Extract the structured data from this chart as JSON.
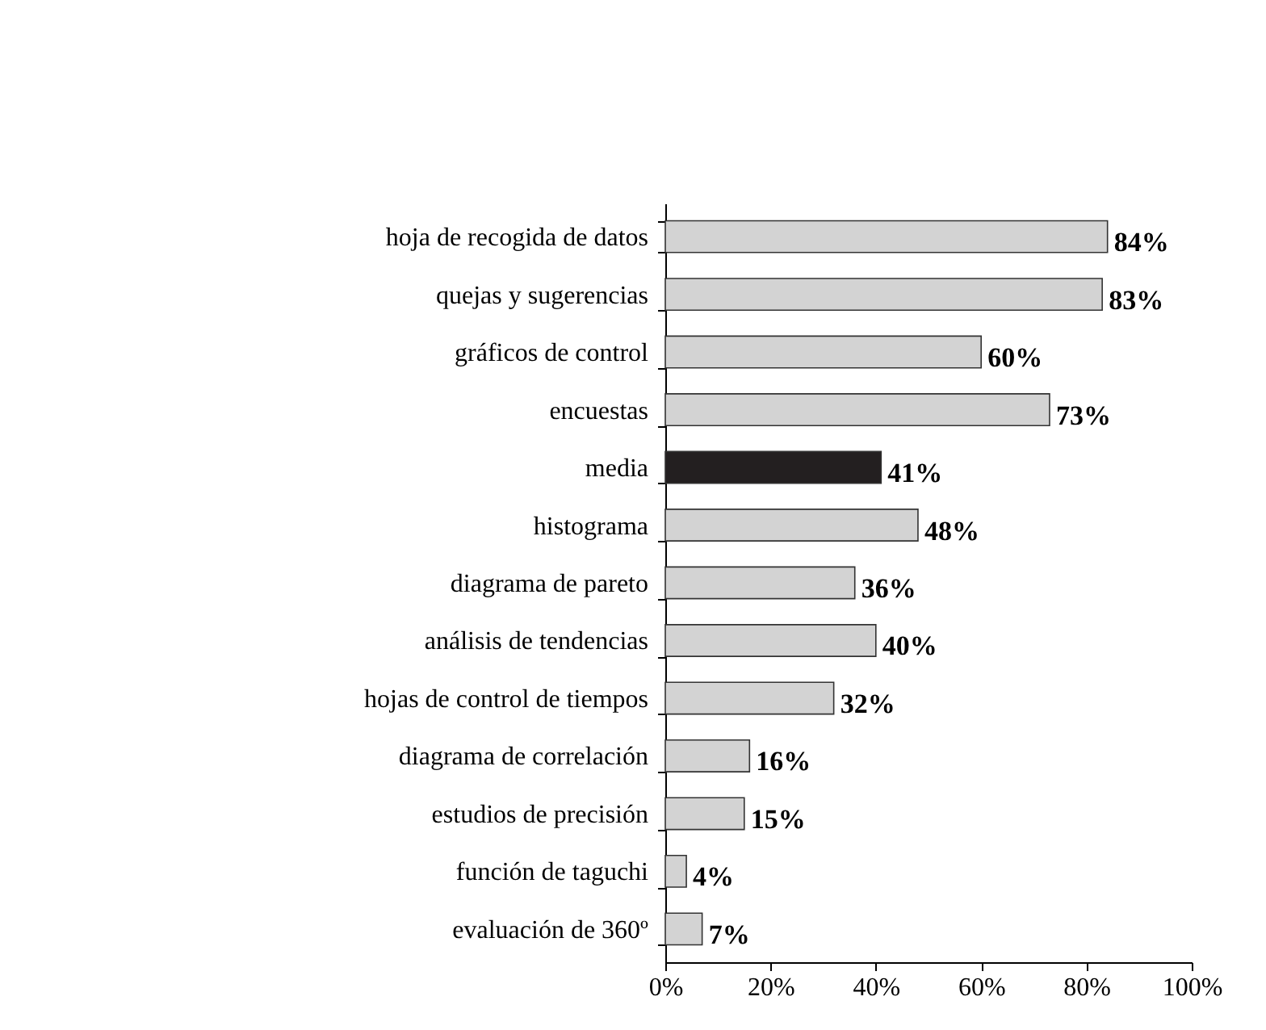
{
  "chart_data": {
    "type": "bar",
    "orientation": "horizontal",
    "categories": [
      "hoja de recogida de datos",
      "quejas y sugerencias",
      "gráficos de control",
      "encuestas",
      "media",
      "histograma",
      "diagrama de pareto",
      "análisis de tendencias",
      "hojas de control de tiempos",
      "diagrama de correlación",
      "estudios de precisión",
      "función de taguchi",
      "evaluación de 360º"
    ],
    "values": [
      84,
      83,
      60,
      73,
      41,
      48,
      36,
      40,
      32,
      16,
      15,
      4,
      7
    ],
    "colors": [
      "#d3d3d3",
      "#d3d3d3",
      "#d3d3d3",
      "#d3d3d3",
      "#231f20",
      "#d3d3d3",
      "#d3d3d3",
      "#d3d3d3",
      "#d3d3d3",
      "#d3d3d3",
      "#d3d3d3",
      "#d3d3d3",
      "#d3d3d3"
    ],
    "value_labels": [
      "84%",
      "83%",
      "60%",
      "73%",
      "41%",
      "48%",
      "36%",
      "40%",
      "32%",
      "16%",
      "15%",
      "4%",
      "7%"
    ],
    "xlim": [
      0,
      100
    ],
    "xticks": [
      {
        "value": 0,
        "label": "0%"
      },
      {
        "value": 20,
        "label": "20%"
      },
      {
        "value": 40,
        "label": "40%"
      },
      {
        "value": 60,
        "label": "60%"
      },
      {
        "value": 80,
        "label": "80%"
      },
      {
        "value": 100,
        "label": "100%"
      }
    ],
    "grid": false
  }
}
